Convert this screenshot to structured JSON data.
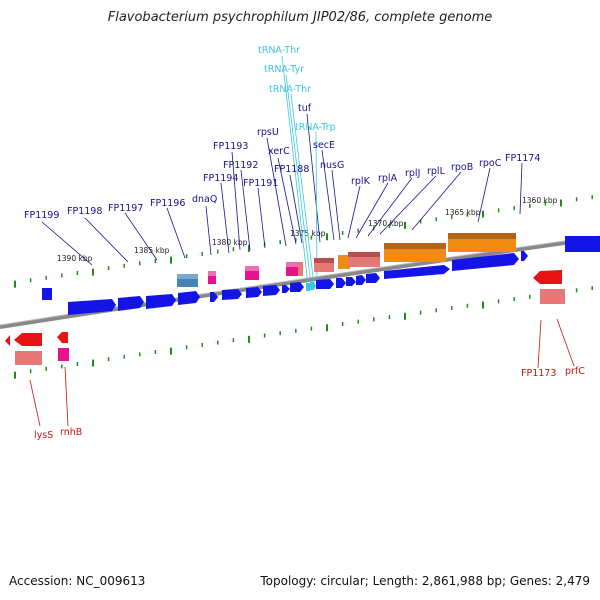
{
  "title": "Flavobacterium psychrophilum JIP02/86, complete genome",
  "accession": "Accession: NC_009613",
  "summary": "Topology: circular; Length: 2,861,988 bp; Genes: 2,479",
  "colors": {
    "forward_gene": "#1414e6",
    "reverse_gene": "#e61414",
    "rrna": "#f08c14",
    "trna": "#3cc8dc",
    "pink": "#e6148c",
    "salmon": "#e67878",
    "steel": "#4682b4",
    "tick": "#1e8c1e",
    "genome_line": "#888888"
  },
  "kbp_labels": [
    "1390 kbp",
    "1385 kbp",
    "1380 kbp",
    "1375 kbp",
    "1370 kbp",
    "1365 kbp",
    "1360 kbp"
  ],
  "gene_labels_top": [
    "FP1199",
    "FP1198",
    "FP1197",
    "FP1196",
    "dnaQ",
    "FP1194",
    "FP1193",
    "FP1192",
    "FP1191",
    "rpsU",
    "xerC",
    "FP1188",
    "tuf",
    "secE",
    "nusG",
    "rplK",
    "rplA",
    "rplJ",
    "rplL",
    "rpoB",
    "rpoC",
    "FP1174"
  ],
  "trna_labels": [
    "tRNA-Thr",
    "tRNA-Tyr",
    "tRNA-Thr",
    "tRNA-Trp"
  ],
  "gene_labels_bottom": [
    "lysS",
    "rnhB",
    "FP1173",
    "prfC"
  ]
}
